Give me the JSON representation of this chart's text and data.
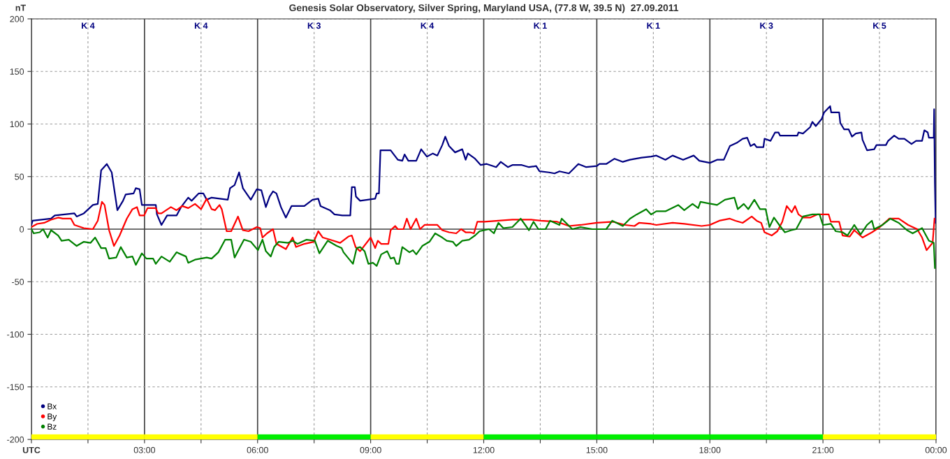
{
  "chart_data": {
    "type": "line",
    "title": "Genesis Solar Observatory, Silver Spring, Maryland USA, (77.8 W, 39.5 N)  27.09.2011",
    "ylabel": "nT",
    "xlim": [
      0,
      24
    ],
    "ylim": [
      -200,
      200
    ],
    "xticks": [
      {
        "value": 0,
        "label": "UTC"
      },
      {
        "value": 1.5,
        "label": null
      },
      {
        "value": 3,
        "label": "03:00"
      },
      {
        "value": 4.5,
        "label": null
      },
      {
        "value": 6,
        "label": "06:00"
      },
      {
        "value": 7.5,
        "label": null
      },
      {
        "value": 9,
        "label": "09:00"
      },
      {
        "value": 10.5,
        "label": null
      },
      {
        "value": 12,
        "label": "12:00"
      },
      {
        "value": 13.5,
        "label": null
      },
      {
        "value": 15,
        "label": "15:00"
      },
      {
        "value": 16.5,
        "label": null
      },
      {
        "value": 18,
        "label": "18:00"
      },
      {
        "value": 19.5,
        "label": null
      },
      {
        "value": 21,
        "label": "21:00"
      },
      {
        "value": 22.5,
        "label": null
      },
      {
        "value": 24,
        "label": "00:00"
      }
    ],
    "yticks": [
      -200,
      -150,
      -100,
      -50,
      0,
      50,
      100,
      150,
      200
    ],
    "grid": true,
    "legend": "bottom left",
    "line_style": "solid",
    "series": [
      {
        "name": "Bx",
        "color": "#000080",
        "x": [
          0.0,
          0.03,
          0.52,
          0.62,
          1.14,
          1.2,
          1.39,
          1.63,
          1.76,
          1.85,
          2.0,
          2.13,
          2.28,
          2.43,
          2.5,
          2.71,
          2.77,
          2.87,
          2.93,
          3.3,
          3.33,
          3.45,
          3.6,
          3.85,
          3.97,
          4.16,
          4.25,
          4.44,
          4.56,
          4.65,
          4.78,
          5.21,
          5.27,
          5.39,
          5.51,
          5.61,
          5.82,
          5.98,
          6.1,
          6.22,
          6.32,
          6.41,
          6.5,
          6.62,
          6.75,
          6.9,
          7.24,
          7.46,
          7.61,
          7.67,
          7.92,
          8.04,
          8.25,
          8.46,
          8.5,
          8.58,
          8.61,
          8.72,
          9.12,
          9.16,
          9.22,
          9.26,
          9.53,
          9.72,
          9.84,
          9.9,
          10.0,
          10.21,
          10.34,
          10.49,
          10.65,
          10.77,
          10.9,
          10.98,
          11.08,
          11.24,
          11.43,
          11.52,
          11.58,
          11.77,
          11.92,
          12.08,
          12.33,
          12.45,
          12.64,
          12.76,
          13.01,
          13.2,
          13.39,
          13.48,
          13.73,
          13.88,
          14.01,
          14.26,
          14.51,
          14.72,
          15.0,
          15.07,
          15.25,
          15.47,
          15.69,
          15.88,
          16.19,
          16.44,
          16.58,
          16.82,
          17.01,
          17.29,
          17.57,
          17.72,
          18.0,
          18.19,
          18.37,
          18.53,
          18.71,
          18.87,
          18.99,
          19.08,
          19.18,
          19.24,
          19.42,
          19.45,
          19.61,
          19.73,
          19.82,
          19.86,
          20.32,
          20.35,
          20.47,
          20.66,
          20.72,
          20.81,
          20.97,
          21.03,
          21.19,
          21.22,
          21.43,
          21.46,
          21.56,
          21.68,
          21.77,
          21.87,
          22.02,
          22.05,
          22.17,
          22.36,
          22.42,
          22.67,
          22.73,
          22.89,
          23.01,
          23.16,
          23.35,
          23.47,
          23.63,
          23.69,
          23.78,
          23.81,
          23.94,
          23.95,
          23.97,
          23.99
        ],
        "values": [
          4,
          8,
          10,
          13,
          15,
          12,
          15,
          23,
          24,
          56,
          62,
          54,
          18,
          27,
          33,
          34,
          39,
          38,
          23,
          23,
          14,
          4,
          13,
          13,
          21,
          30,
          27,
          34,
          34,
          28,
          30,
          28,
          39,
          42,
          54,
          39,
          28,
          38,
          37,
          21,
          31,
          36,
          34,
          21,
          11,
          22,
          22,
          28,
          29,
          22,
          18,
          14,
          13,
          13,
          40,
          40,
          31,
          27,
          29,
          34,
          34,
          75,
          75,
          66,
          65,
          71,
          65,
          65,
          76,
          69,
          72,
          70,
          80,
          88,
          79,
          73,
          76,
          66,
          72,
          67,
          61,
          62,
          59,
          64,
          59,
          61,
          61,
          59,
          60,
          55,
          54,
          53,
          55,
          53,
          62,
          59,
          60,
          62,
          62,
          67,
          64,
          66,
          68,
          69,
          70,
          66,
          70,
          66,
          70,
          65,
          63,
          66,
          66,
          79,
          82,
          86,
          87,
          79,
          81,
          78,
          78,
          86,
          84,
          92,
          92,
          89,
          89,
          92,
          91,
          97,
          102,
          98,
          105,
          111,
          117,
          111,
          111,
          101,
          95,
          95,
          88,
          91,
          92,
          85,
          75,
          76,
          80,
          80,
          84,
          89,
          86,
          86,
          81,
          84,
          84,
          94,
          92,
          87,
          87,
          114,
          44,
          6
        ]
      },
      {
        "name": "By",
        "color": "#ff0000",
        "x": [
          0.0,
          0.15,
          0.34,
          0.52,
          0.71,
          0.83,
          1.05,
          1.14,
          1.39,
          1.63,
          1.76,
          1.87,
          1.94,
          2.06,
          2.19,
          2.34,
          2.53,
          2.68,
          2.8,
          2.87,
          2.99,
          3.08,
          3.3,
          3.36,
          3.45,
          3.7,
          3.85,
          4.0,
          4.16,
          4.34,
          4.5,
          4.65,
          4.78,
          4.87,
          4.99,
          5.05,
          5.18,
          5.3,
          5.48,
          5.61,
          5.76,
          5.98,
          6.07,
          6.13,
          6.25,
          6.41,
          6.5,
          6.75,
          6.93,
          7.02,
          7.24,
          7.49,
          7.61,
          7.73,
          7.92,
          8.19,
          8.41,
          8.5,
          8.6,
          8.72,
          9.0,
          9.12,
          9.19,
          9.28,
          9.47,
          9.53,
          9.65,
          9.72,
          9.87,
          9.96,
          10.06,
          10.21,
          10.31,
          10.43,
          10.77,
          10.9,
          11.08,
          11.27,
          11.4,
          11.52,
          11.64,
          11.74,
          11.83,
          12.02,
          12.39,
          12.76,
          13.01,
          13.26,
          13.51,
          13.95,
          14.26,
          14.57,
          15.0,
          15.44,
          15.75,
          16.0,
          16.12,
          16.44,
          16.58,
          17.01,
          17.32,
          17.78,
          18.0,
          18.25,
          18.53,
          18.68,
          18.87,
          19.11,
          19.24,
          19.36,
          19.45,
          19.64,
          19.79,
          19.92,
          20.04,
          20.17,
          20.26,
          20.35,
          20.47,
          20.66,
          20.85,
          21.15,
          21.21,
          21.43,
          21.52,
          21.71,
          21.83,
          22.05,
          22.3,
          22.51,
          22.76,
          23.01,
          23.26,
          23.5,
          23.63,
          23.75,
          23.91,
          23.96
        ],
        "values": [
          2,
          5,
          6,
          9,
          11,
          10,
          10,
          4,
          1,
          0,
          8,
          26,
          23,
          -1,
          -16,
          -6,
          10,
          19,
          21,
          13,
          13,
          20,
          20,
          15,
          15,
          21,
          18,
          22,
          20,
          24,
          19,
          29,
          19,
          18,
          23,
          19,
          -2,
          -2,
          12,
          -1,
          -2,
          2,
          1,
          -8,
          -4,
          0,
          -14,
          -19,
          -8,
          -17,
          -14,
          -12,
          -2,
          -8,
          -10,
          -13,
          -7,
          -6,
          -17,
          -21,
          -8,
          -18,
          -11,
          -14,
          -14,
          -1,
          3,
          0,
          0,
          10,
          0,
          10,
          0,
          4,
          4,
          -1,
          -3,
          -4,
          0,
          -3,
          -3,
          -4,
          7,
          7,
          8,
          9,
          9,
          9,
          8,
          7,
          3,
          4,
          6,
          7,
          4,
          3,
          6,
          5,
          4,
          6,
          5,
          3,
          4,
          8,
          10,
          8,
          6,
          12,
          8,
          6,
          -3,
          -6,
          -2,
          7,
          22,
          16,
          22,
          14,
          11,
          11,
          14,
          14,
          7,
          7,
          -6,
          -7,
          -1,
          -8,
          -3,
          2,
          10,
          10,
          4,
          0,
          -8,
          -20,
          -13,
          10
        ]
      },
      {
        "name": "Bz",
        "color": "#008000",
        "x": [
          0.0,
          0.06,
          0.22,
          0.31,
          0.43,
          0.52,
          0.71,
          0.8,
          0.99,
          1.2,
          1.39,
          1.57,
          1.69,
          1.85,
          1.97,
          2.06,
          2.25,
          2.37,
          2.53,
          2.68,
          2.77,
          2.93,
          3.05,
          3.23,
          3.3,
          3.45,
          3.67,
          3.85,
          4.1,
          4.16,
          4.34,
          4.65,
          4.78,
          4.96,
          5.14,
          5.3,
          5.39,
          5.64,
          5.82,
          6.01,
          6.13,
          6.22,
          6.35,
          6.44,
          6.56,
          6.81,
          6.93,
          7.06,
          7.3,
          7.52,
          7.64,
          7.86,
          8.1,
          8.23,
          8.28,
          8.53,
          8.63,
          8.72,
          8.84,
          8.94,
          9.06,
          9.16,
          9.28,
          9.44,
          9.53,
          9.62,
          9.68,
          9.75,
          9.84,
          10.03,
          10.12,
          10.21,
          10.37,
          10.56,
          10.71,
          10.9,
          11.02,
          11.18,
          11.27,
          11.43,
          11.61,
          11.77,
          11.89,
          12.14,
          12.27,
          12.39,
          12.52,
          12.76,
          12.98,
          13.2,
          13.32,
          13.45,
          13.64,
          13.76,
          14.01,
          14.07,
          14.35,
          14.57,
          14.88,
          15.25,
          15.41,
          15.69,
          15.88,
          16.06,
          16.31,
          16.44,
          16.58,
          16.82,
          17.16,
          17.32,
          17.54,
          17.69,
          17.75,
          18.19,
          18.4,
          18.65,
          18.74,
          18.9,
          19.02,
          19.18,
          19.33,
          19.48,
          19.58,
          19.7,
          19.86,
          19.99,
          20.16,
          20.29,
          20.47,
          20.72,
          20.91,
          21.0,
          21.21,
          21.34,
          21.52,
          21.65,
          21.83,
          22.0,
          22.17,
          22.3,
          22.36,
          22.58,
          22.79,
          23.01,
          23.23,
          23.38,
          23.63,
          23.81,
          23.94,
          23.97
        ],
        "values": [
          0,
          -4,
          -3,
          0,
          -8,
          -1,
          -6,
          -11,
          -10,
          -16,
          -12,
          -13,
          -8,
          -18,
          -18,
          -28,
          -27,
          -17,
          -27,
          -26,
          -34,
          -23,
          -28,
          -28,
          -33,
          -26,
          -31,
          -22,
          -26,
          -32,
          -29,
          -27,
          -28,
          -22,
          -10,
          -10,
          -27,
          -10,
          -12,
          -20,
          -10,
          -21,
          -26,
          -17,
          -12,
          -13,
          -11,
          -14,
          -10,
          -11,
          -23,
          -11,
          -16,
          -18,
          -22,
          -33,
          -18,
          -17,
          -21,
          -33,
          -32,
          -35,
          -24,
          -21,
          -28,
          -27,
          -33,
          -33,
          -17,
          -22,
          -20,
          -24,
          -16,
          -12,
          -4,
          -8,
          -11,
          -12,
          -16,
          -11,
          -10,
          -6,
          -2,
          0,
          -4,
          6,
          1,
          2,
          10,
          -1,
          7,
          0,
          0,
          8,
          4,
          10,
          0,
          2,
          0,
          0,
          8,
          3,
          10,
          14,
          19,
          14,
          17,
          17,
          23,
          18,
          24,
          20,
          26,
          23,
          28,
          30,
          19,
          24,
          19,
          28,
          19,
          19,
          2,
          11,
          3,
          -3,
          -1,
          0,
          12,
          14,
          14,
          4,
          5,
          -2,
          -3,
          -6,
          4,
          -5,
          4,
          8,
          0,
          4,
          10,
          6,
          -1,
          -4,
          1,
          -11,
          -13,
          -37
        ]
      }
    ],
    "annotations": [
      "K 4",
      "K 4",
      "K 3",
      "K 4",
      "K 1",
      "K 1",
      "K 3",
      "K 5"
    ]
  }
}
